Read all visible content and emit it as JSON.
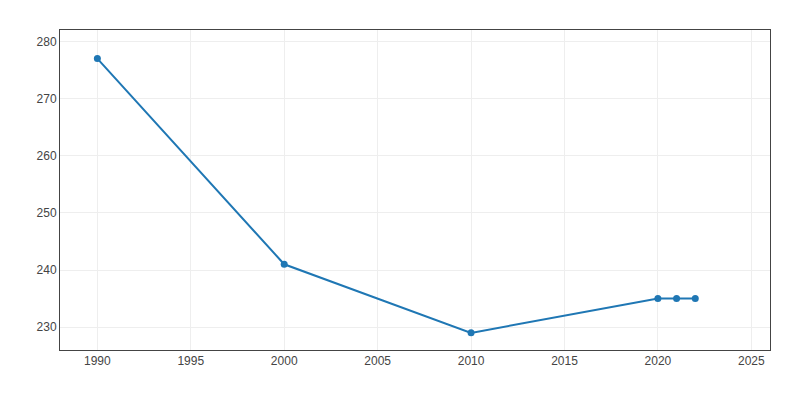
{
  "chart_data": {
    "type": "line",
    "x": [
      1990,
      2000,
      2010,
      2020,
      2021,
      2022
    ],
    "values": [
      277,
      241,
      229,
      235,
      235,
      235
    ],
    "marker": "o",
    "xlim": [
      1988,
      2026
    ],
    "ylim": [
      226,
      282
    ],
    "xticks": [
      1990,
      1995,
      2000,
      2005,
      2010,
      2015,
      2020,
      2025
    ],
    "yticks": [
      230,
      240,
      250,
      260,
      270,
      280
    ],
    "grid": true
  }
}
